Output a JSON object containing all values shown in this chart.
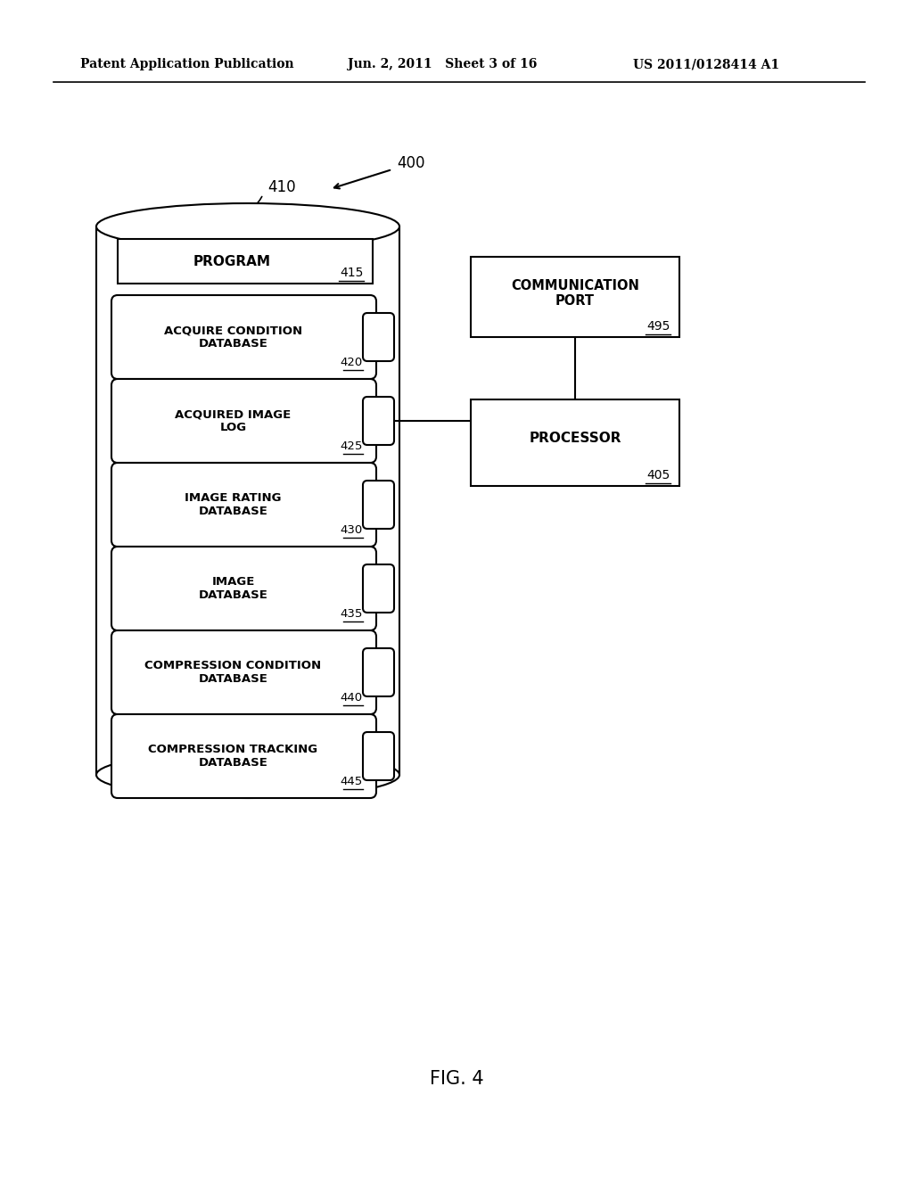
{
  "title_left": "Patent Application Publication",
  "title_mid": "Jun. 2, 2011   Sheet 3 of 16",
  "title_right": "US 2011/0128414 A1",
  "fig_label": "FIG. 4",
  "main_label": "400",
  "cylinder_label": "410",
  "processor_label": "405",
  "comm_port_label": "495",
  "program_label": "415",
  "db_items": [
    {
      "label": "ACQUIRE CONDITION\nDATABASE",
      "num": "420"
    },
    {
      "label": "ACQUIRED IMAGE\nLOG",
      "num": "425"
    },
    {
      "label": "IMAGE RATING\nDATABASE",
      "num": "430"
    },
    {
      "label": "IMAGE\nDATABASE",
      "num": "435"
    },
    {
      "label": "COMPRESSION CONDITION\nDATABASE",
      "num": "440"
    },
    {
      "label": "COMPRESSION TRACKING\nDATABASE",
      "num": "445"
    }
  ],
  "bg_color": "#ffffff",
  "line_color": "#000000",
  "text_color": "#000000"
}
